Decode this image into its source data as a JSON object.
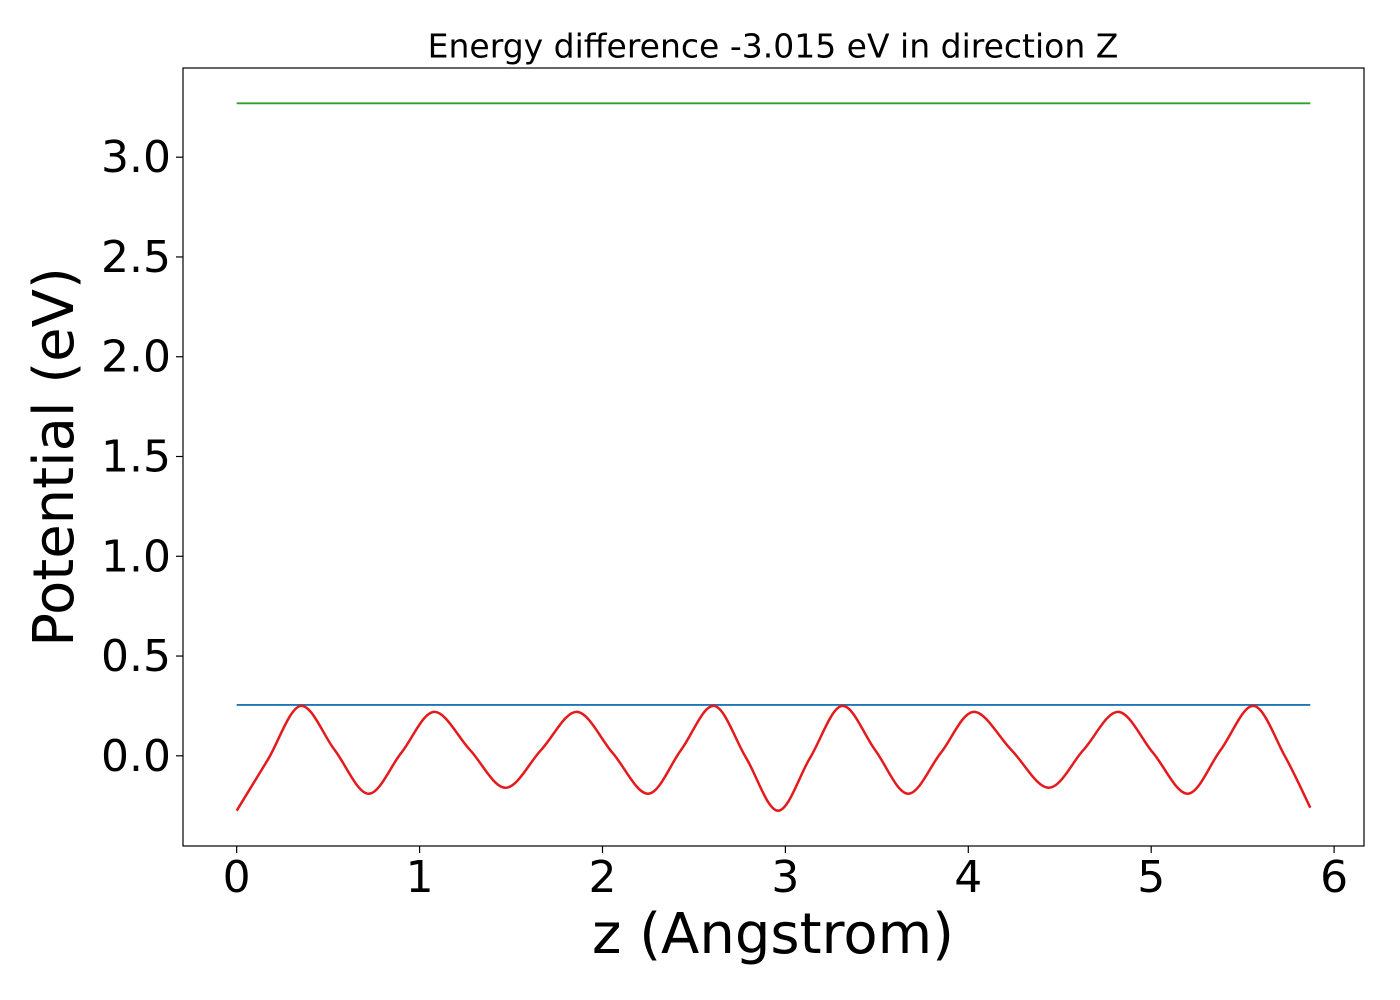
{
  "chart_data": {
    "type": "line",
    "title": "Energy difference -3.015 eV in direction Z",
    "x_label": "z (Angstrom)",
    "y_label": "Potential (eV)",
    "xlim": [
      -0.2935,
      6.1635
    ],
    "ylim": [
      -0.452,
      3.447
    ],
    "xticks": [
      0,
      1,
      2,
      3,
      4,
      5,
      6
    ],
    "yticks": [
      {
        "value": 0,
        "label": "0.0"
      },
      {
        "value": 0.5,
        "label": "0.5"
      },
      {
        "value": 1,
        "label": "1.0"
      },
      {
        "value": 1.5,
        "label": "1.5"
      },
      {
        "value": 2,
        "label": "2.0"
      },
      {
        "value": 2.5,
        "label": "2.5"
      },
      {
        "value": 3,
        "label": "3.0"
      }
    ],
    "grid": false,
    "series": [
      {
        "color": "#2ca02c",
        "x": [
          0,
          5.87
        ],
        "values": [
          3.27,
          3.27
        ]
      },
      {
        "color": "#1f77b4",
        "x": [
          0,
          5.87
        ],
        "values": [
          0.255,
          0.255
        ]
      },
      {
        "color": "#e41a1c",
        "x": [
          0,
          0.17,
          0.35,
          0.535,
          0.72,
          0.9,
          1.08,
          1.275,
          1.47,
          1.665,
          1.86,
          2.055,
          2.25,
          2.43,
          2.61,
          2.785,
          2.96,
          3.135,
          3.31,
          3.49,
          3.67,
          3.85,
          4.03,
          4.235,
          4.44,
          4.63,
          4.82,
          5.01,
          5.2,
          5.38,
          5.56,
          5.73,
          5.87
        ],
        "values": [
          -0.275,
          -0.02,
          0.25,
          0.03,
          -0.19,
          0.015,
          0.22,
          0.03,
          -0.16,
          0.03,
          0.22,
          0.015,
          -0.19,
          0.03,
          0.25,
          -0.01,
          -0.275,
          -0.01,
          0.25,
          0.03,
          -0.19,
          0.015,
          0.22,
          0.03,
          -0.16,
          0.03,
          0.22,
          0.015,
          -0.19,
          0.03,
          0.25,
          0.0,
          -0.26
        ]
      }
    ]
  }
}
